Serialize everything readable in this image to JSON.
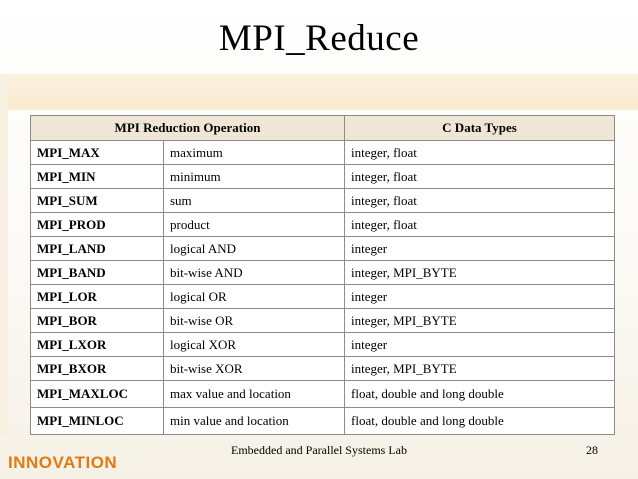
{
  "slide": {
    "title": "MPI_Reduce",
    "footer": "Embedded and Parallel Systems Lab",
    "page_number": "28",
    "logo_text": "INNOVATION"
  },
  "table": {
    "headers": [
      "MPI Reduction Operation",
      "C Data Types"
    ],
    "rows": [
      {
        "op": "MPI_MAX",
        "desc": "maximum",
        "types": "integer, float"
      },
      {
        "op": "MPI_MIN",
        "desc": "minimum",
        "types": "integer, float"
      },
      {
        "op": "MPI_SUM",
        "desc": "sum",
        "types": "integer, float"
      },
      {
        "op": "MPI_PROD",
        "desc": "product",
        "types": "integer, float"
      },
      {
        "op": "MPI_LAND",
        "desc": "logical AND",
        "types": "integer"
      },
      {
        "op": "MPI_BAND",
        "desc": "bit-wise AND",
        "types": "integer, MPI_BYTE"
      },
      {
        "op": "MPI_LOR",
        "desc": "logical OR",
        "types": "integer"
      },
      {
        "op": "MPI_BOR",
        "desc": "bit-wise OR",
        "types": "integer, MPI_BYTE"
      },
      {
        "op": "MPI_LXOR",
        "desc": "logical XOR",
        "types": "integer"
      },
      {
        "op": "MPI_BXOR",
        "desc": "bit-wise XOR",
        "types": "integer, MPI_BYTE"
      },
      {
        "op": "MPI_MAXLOC",
        "desc": "max value and location",
        "types": "float, double and long double"
      },
      {
        "op": "MPI_MINLOC",
        "desc": "min value and location",
        "types": "float, double and long double"
      }
    ]
  },
  "colors": {
    "logo": "#e07b12",
    "header_bg": "#efe7d5",
    "band": "#f9ead0"
  }
}
